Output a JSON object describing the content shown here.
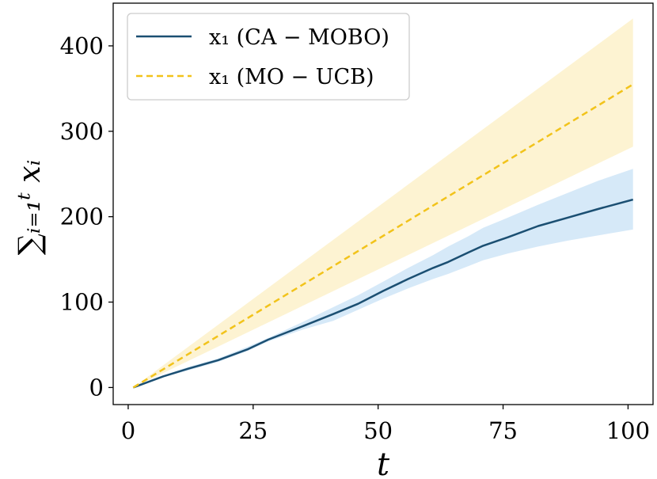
{
  "chart_data": {
    "type": "line",
    "title": "",
    "xlabel": "t",
    "ylabel": "∑ᵢ₌₁ᵗ xᵢ",
    "xlim": [
      -3,
      105
    ],
    "ylim": [
      -20,
      450
    ],
    "xticks": [
      0,
      25,
      50,
      75,
      100
    ],
    "yticks": [
      0,
      100,
      200,
      300,
      400
    ],
    "grid": false,
    "legend_position": "top-left",
    "series": [
      {
        "name": "x₁ (CA − MOBO)",
        "color": "#1b4f72",
        "line_style": "solid",
        "band_color": "#d6e9f8",
        "x": [
          1,
          7,
          12,
          18,
          24,
          28,
          35,
          41,
          46,
          51,
          56,
          61,
          64,
          68,
          71,
          76,
          82,
          88,
          94,
          101
        ],
        "y": [
          0,
          13,
          22,
          32,
          45,
          56,
          72,
          86,
          98,
          113,
          127,
          140,
          147,
          158,
          166,
          176,
          189,
          199,
          209,
          220
        ],
        "lower": [
          0,
          12,
          20,
          30,
          43,
          54,
          68,
          78,
          91,
          104,
          116,
          127,
          133,
          142,
          149,
          157,
          165,
          172,
          178,
          185
        ],
        "upper": [
          0,
          14,
          24,
          34,
          48,
          58,
          77,
          94,
          108,
          124,
          140,
          155,
          165,
          177,
          187,
          199,
          214,
          228,
          242,
          256
        ]
      },
      {
        "name": "x₁ (MO − UCB)",
        "color": "#f2c31b",
        "line_style": "dashed",
        "band_color": "#fdf3d2",
        "x": [
          1,
          101
        ],
        "y": [
          0,
          355
        ],
        "lower": [
          0,
          282
        ],
        "upper": [
          0,
          432
        ]
      }
    ]
  }
}
